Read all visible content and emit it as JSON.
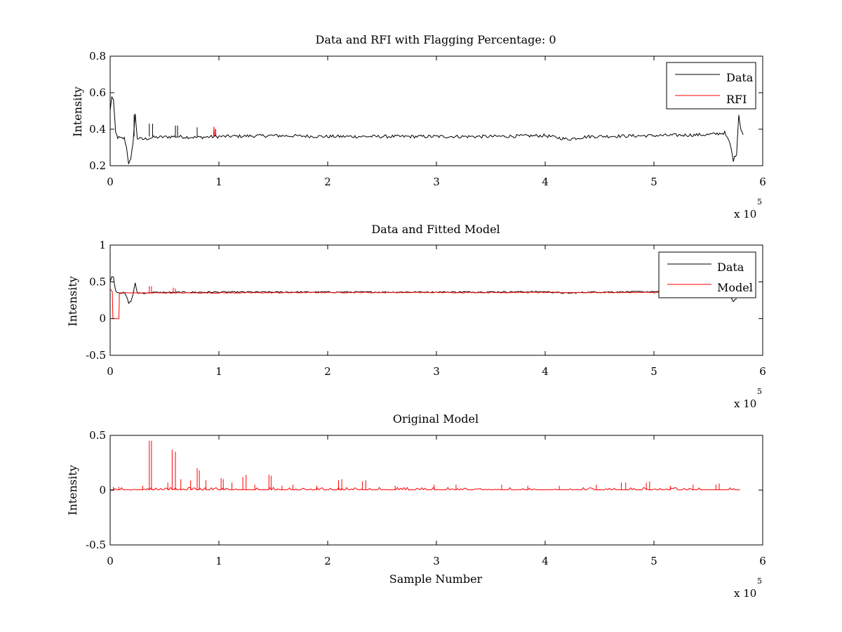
{
  "chart_data": [
    {
      "type": "line",
      "title": "Data and RFI with Flagging Percentage: 0",
      "xlabel": "",
      "ylabel": "Intensity",
      "xlim": [
        0,
        600000
      ],
      "ylim": [
        0.2,
        0.8
      ],
      "xticks": [
        "0",
        "1",
        "2",
        "3",
        "4",
        "5",
        "6"
      ],
      "yticks": [
        "0.2",
        "0.4",
        "0.6",
        "0.8"
      ],
      "x_multiplier": {
        "base": "x 10",
        "exponent": "5"
      },
      "grid": false,
      "legend": {
        "placement": "top-right",
        "entries": [
          "Data",
          "RFI"
        ]
      },
      "series": [
        {
          "name": "Data",
          "color": "#000000",
          "x": [
            0,
            1500,
            3000,
            5000,
            7000,
            10000,
            13000,
            15000,
            17000,
            19000,
            21000,
            23000,
            25000,
            30000,
            40000,
            60000,
            80000,
            100000,
            150000,
            200000,
            250000,
            300000,
            350000,
            400000,
            420000,
            440000,
            500000,
            550000,
            565000,
            570000,
            573000,
            576000,
            578000,
            580000,
            582000
          ],
          "y": [
            0.5,
            0.58,
            0.56,
            0.38,
            0.355,
            0.35,
            0.35,
            0.3,
            0.215,
            0.23,
            0.33,
            0.48,
            0.35,
            0.345,
            0.355,
            0.36,
            0.355,
            0.36,
            0.365,
            0.36,
            0.36,
            0.36,
            0.36,
            0.365,
            0.345,
            0.36,
            0.365,
            0.37,
            0.38,
            0.32,
            0.23,
            0.27,
            0.48,
            0.4,
            0.37
          ]
        },
        {
          "name": "RFI",
          "color": "#ff0000",
          "x": [
            95000,
            95500,
            96000
          ],
          "y": [
            0.36,
            0.41,
            0.36
          ]
        }
      ]
    },
    {
      "type": "line",
      "title": "Data and Fitted Model",
      "xlabel": "",
      "ylabel": "Intensity",
      "xlim": [
        0,
        600000
      ],
      "ylim": [
        -0.5,
        1
      ],
      "xticks": [
        "0",
        "1",
        "2",
        "3",
        "4",
        "5",
        "6"
      ],
      "yticks": [
        "-0.5",
        "0",
        "0.5",
        "1"
      ],
      "x_multiplier": {
        "base": "x 10",
        "exponent": "5"
      },
      "grid": false,
      "legend": {
        "placement": "top-right",
        "entries": [
          "Data",
          "Model"
        ]
      },
      "series": [
        {
          "name": "Data",
          "color": "#000000",
          "x": [
            0,
            1500,
            3000,
            5000,
            7000,
            10000,
            13000,
            15000,
            17000,
            19000,
            21000,
            23000,
            25000,
            30000,
            40000,
            100000,
            200000,
            300000,
            400000,
            420000,
            440000,
            500000,
            550000,
            565000,
            570000,
            573000,
            576000
          ],
          "y": [
            0.5,
            0.58,
            0.56,
            0.38,
            0.355,
            0.35,
            0.35,
            0.3,
            0.215,
            0.23,
            0.33,
            0.48,
            0.35,
            0.345,
            0.355,
            0.36,
            0.36,
            0.36,
            0.365,
            0.345,
            0.36,
            0.365,
            0.37,
            0.38,
            0.32,
            0.23,
            0.27
          ]
        },
        {
          "name": "Model",
          "color": "#ff0000",
          "x": [
            0,
            1500,
            2000,
            2500,
            3000,
            3500,
            8000,
            8500,
            9000,
            100000,
            200000,
            300000,
            400000,
            500000,
            580000
          ],
          "y": [
            0.4,
            0.38,
            0.36,
            0.0,
            0.0,
            0.0,
            0.0,
            0.35,
            0.35,
            0.35,
            0.355,
            0.355,
            0.355,
            0.355,
            0.355
          ]
        }
      ]
    },
    {
      "type": "line",
      "title": "Original Model",
      "xlabel": "Sample Number",
      "ylabel": "Intensity",
      "xlim": [
        0,
        600000
      ],
      "ylim": [
        -0.5,
        0.5
      ],
      "xticks": [
        "0",
        "1",
        "2",
        "3",
        "4",
        "5",
        "6"
      ],
      "yticks": [
        "-0.5",
        "0",
        "0.5"
      ],
      "x_multiplier": {
        "base": "x 10",
        "exponent": "5"
      },
      "grid": false,
      "legend": null,
      "series": [
        {
          "color": "#ff0000",
          "baseline": 0.0,
          "x_range": [
            0,
            580000
          ],
          "spikes": [
            [
              36000,
              0.45
            ],
            [
              38000,
              0.45
            ],
            [
              57000,
              0.37
            ],
            [
              60000,
              0.35
            ],
            [
              80000,
              0.2
            ],
            [
              82000,
              0.18
            ],
            [
              102000,
              0.11
            ],
            [
              104000,
              0.1
            ],
            [
              122000,
              0.12
            ],
            [
              125000,
              0.14
            ],
            [
              146000,
              0.14
            ],
            [
              148000,
              0.13
            ],
            [
              210000,
              0.09
            ],
            [
              213000,
              0.1
            ],
            [
              232000,
              0.08
            ],
            [
              235000,
              0.09
            ],
            [
              470000,
              0.07
            ],
            [
              474000,
              0.07
            ],
            [
              493000,
              0.07
            ],
            [
              496000,
              0.08
            ],
            [
              536000,
              0.05
            ],
            [
              557000,
              0.05
            ],
            [
              560000,
              0.06
            ],
            [
              3000,
              0.03
            ],
            [
              8000,
              0.03
            ],
            [
              30000,
              0.04
            ],
            [
              53000,
              0.07
            ],
            [
              65000,
              0.1
            ],
            [
              74000,
              0.09
            ],
            [
              88000,
              0.09
            ],
            [
              112000,
              0.07
            ],
            [
              133000,
              0.05
            ],
            [
              158000,
              0.04
            ],
            [
              168000,
              0.05
            ],
            [
              190000,
              0.04
            ],
            [
              262000,
              0.04
            ],
            [
              298000,
              0.05
            ],
            [
              318000,
              0.05
            ],
            [
              360000,
              0.05
            ],
            [
              384000,
              0.04
            ],
            [
              413000,
              0.04
            ],
            [
              447000,
              0.05
            ],
            [
              515000,
              0.04
            ]
          ]
        }
      ]
    }
  ]
}
